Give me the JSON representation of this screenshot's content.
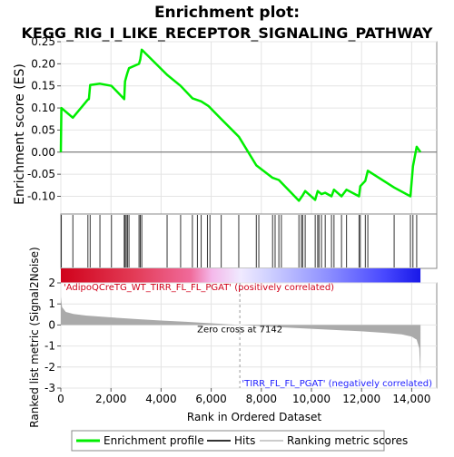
{
  "chart_data": {
    "type": "line",
    "title_line1": "Enrichment plot:",
    "title_line2": "KEGG_RIG_I_LIKE_RECEPTOR_SIGNALING_PATHWAY",
    "es_panel": {
      "ylabel": "Enrichment score (ES)",
      "ylim": [
        -0.14,
        0.25
      ],
      "yticks": [
        "0.25",
        "0.20",
        "0.15",
        "0.10",
        "0.05",
        "0.00",
        "-0.05",
        "-0.10"
      ],
      "ytick_values": [
        0.25,
        0.2,
        0.15,
        0.1,
        0.05,
        0.0,
        -0.05,
        -0.1
      ],
      "series_color": "#00ee00",
      "x": [
        0,
        20,
        480,
        1080,
        1120,
        1170,
        1560,
        2020,
        2530,
        2560,
        2610,
        2660,
        2720,
        3120,
        3170,
        3230,
        4240,
        4780,
        5250,
        5600,
        5900,
        6400,
        7100,
        7800,
        8450,
        8700,
        9500,
        9650,
        9750,
        10150,
        10250,
        10400,
        10550,
        10800,
        10900,
        11200,
        11400,
        11900,
        11950,
        12150,
        12250,
        13300,
        13950,
        14050,
        14200,
        14350
      ],
      "y": [
        0.0,
        0.1,
        0.078,
        0.119,
        0.12,
        0.152,
        0.155,
        0.15,
        0.12,
        0.16,
        0.17,
        0.18,
        0.19,
        0.2,
        0.21,
        0.232,
        0.175,
        0.15,
        0.122,
        0.115,
        0.104,
        0.075,
        0.035,
        -0.03,
        -0.058,
        -0.063,
        -0.11,
        -0.098,
        -0.088,
        -0.108,
        -0.088,
        -0.095,
        -0.092,
        -0.1,
        -0.085,
        -0.1,
        -0.085,
        -0.1,
        -0.077,
        -0.065,
        -0.042,
        -0.08,
        -0.1,
        -0.032,
        0.012,
        0.0
      ]
    },
    "hits": [
      20,
      480,
      1080,
      1170,
      1560,
      2020,
      2530,
      2560,
      2610,
      2660,
      2720,
      3120,
      3170,
      3230,
      4240,
      4780,
      5250,
      5450,
      5600,
      5850,
      5950,
      6400,
      7100,
      7800,
      7900,
      8450,
      8550,
      8700,
      8800,
      9500,
      9600,
      9650,
      9750,
      10150,
      10250,
      10300,
      10400,
      10550,
      10800,
      10900,
      11200,
      11400,
      11900,
      11950,
      12150,
      12250,
      13300,
      13950,
      14050,
      14200
    ],
    "rank_panel": {
      "ylabel": "Ranked list metric (Signal2Noise)",
      "ylim": [
        -3,
        2
      ],
      "yticks": [
        "2",
        "1",
        "0",
        "-1",
        "-2",
        "-3"
      ],
      "ytick_values": [
        2,
        1,
        0,
        -1,
        -2,
        -3
      ],
      "profile_x": [
        0,
        50,
        200,
        500,
        1000,
        2000,
        3000,
        4000,
        5000,
        6000,
        7142,
        8000,
        9000,
        10000,
        11000,
        12000,
        13000,
        13600,
        14000,
        14200,
        14300,
        14350
      ],
      "profile_y": [
        1.35,
        0.85,
        0.62,
        0.52,
        0.45,
        0.36,
        0.28,
        0.21,
        0.15,
        0.08,
        0.0,
        -0.06,
        -0.12,
        -0.18,
        -0.24,
        -0.3,
        -0.38,
        -0.45,
        -0.55,
        -0.7,
        -1.1,
        -2.4
      ],
      "pos_label": "'AdipoQCreTG_WT_TIRR_FL_FL_PGAT' (positively correlated)",
      "neg_label": "'TIRR_FL_FL_PGAT' (negatively correlated)",
      "zero_cross_label": "Zero cross at 7142",
      "zero_cross": 7142
    },
    "xlabel": "Rank in Ordered Dataset",
    "xlim": [
      0,
      15000
    ],
    "xticks": [
      "0",
      "2,000",
      "4,000",
      "6,000",
      "8,000",
      "10,000",
      "12,000",
      "14,000"
    ],
    "xtick_values": [
      0,
      2000,
      4000,
      6000,
      8000,
      10000,
      12000,
      14000
    ],
    "legend": {
      "items": [
        {
          "label": "Enrichment profile",
          "color": "#00ee00"
        },
        {
          "label": "Hits",
          "color": "#333333"
        },
        {
          "label": "Ranking metric scores",
          "color": "#cccccc"
        }
      ]
    },
    "colors": {
      "pos": "#d0021b",
      "neg": "#2020ff",
      "profile_fill": "#aaaaaa"
    }
  }
}
